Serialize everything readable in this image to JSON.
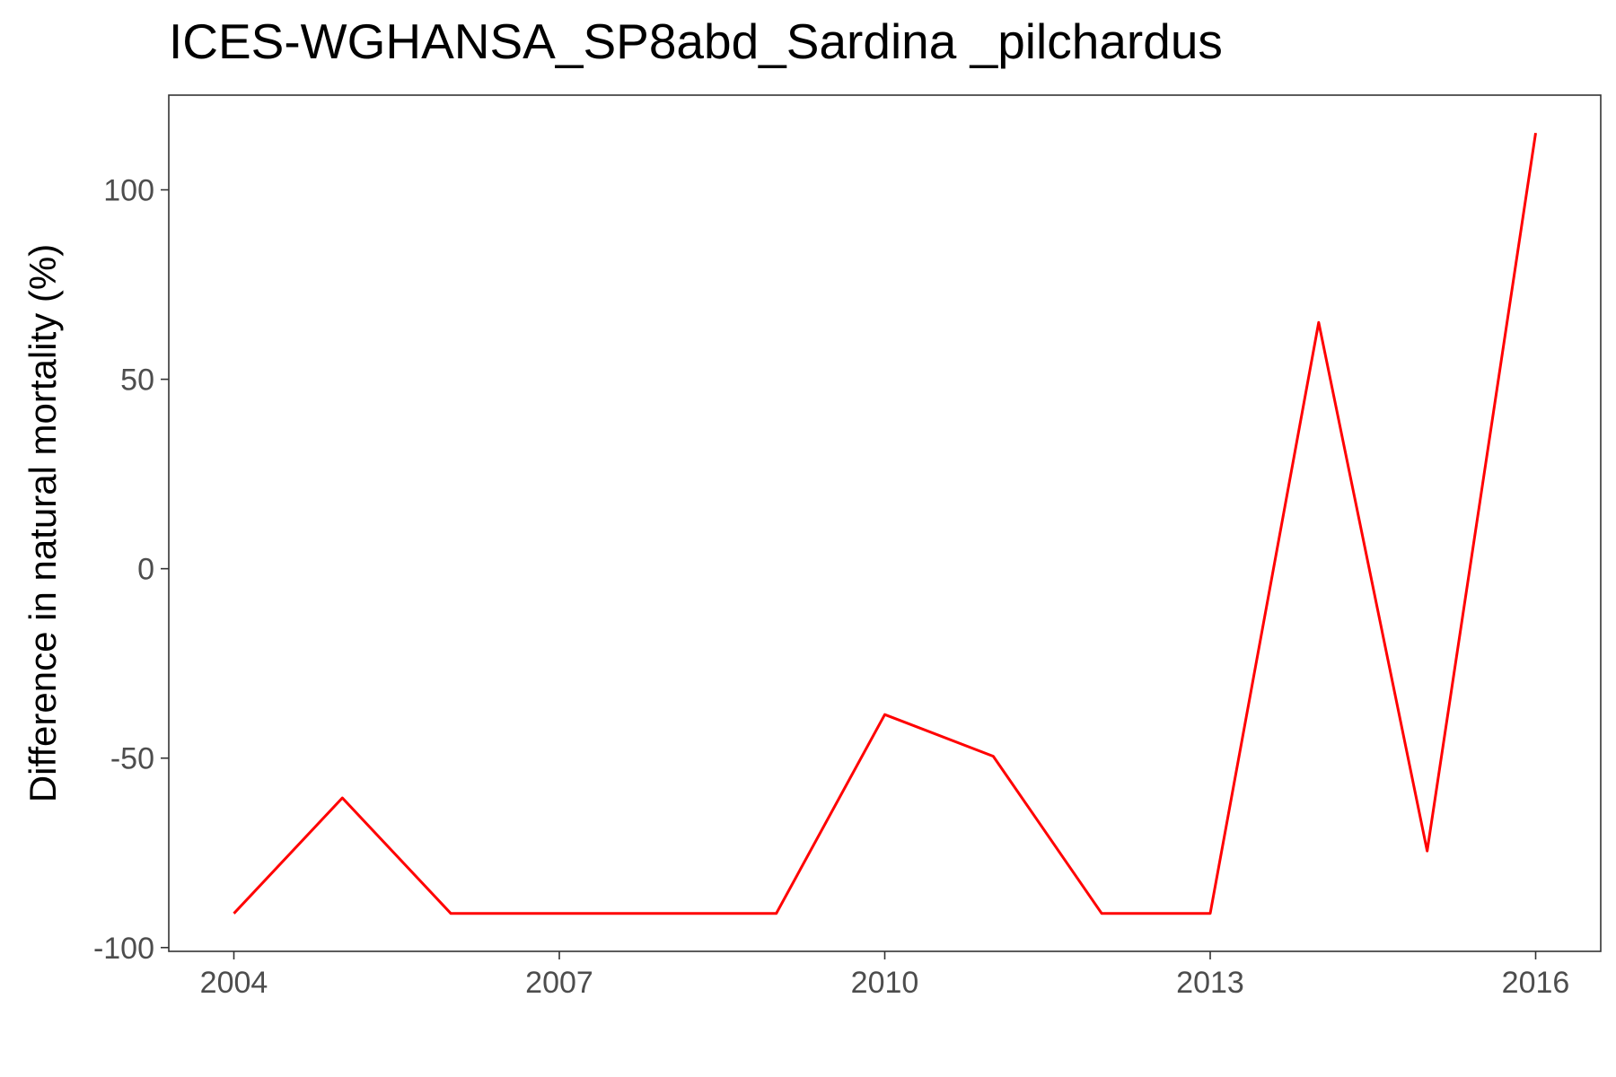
{
  "chart_data": {
    "type": "line",
    "title": "ICES-WGHANSA_SP8abd_Sardina _pilchardus",
    "xlabel": "",
    "ylabel": "Difference in natural mortality (%)",
    "x": [
      2004,
      2005,
      2006,
      2007,
      2008,
      2009,
      2010,
      2011,
      2012,
      2013,
      2014,
      2015,
      2016
    ],
    "series": [
      {
        "color": "#ff0000",
        "values": [
          -91,
          -60.5,
          -91,
          -91,
          -91,
          -91,
          -38.5,
          -49.5,
          -91,
          -91,
          65,
          -74.5,
          115
        ]
      }
    ],
    "xticks": [
      2004,
      2007,
      2010,
      2013,
      2016
    ],
    "xtick_labels": [
      "2004",
      "2007",
      "2010",
      "2013",
      "2016"
    ],
    "yticks": [
      -100,
      -50,
      0,
      50,
      100
    ],
    "ytick_labels": [
      "-100",
      "-50",
      "0",
      "50",
      "100"
    ],
    "xlim": [
      2003.4,
      2016.6
    ],
    "ylim": [
      -101,
      125
    ],
    "grid": false,
    "legend": "none"
  }
}
